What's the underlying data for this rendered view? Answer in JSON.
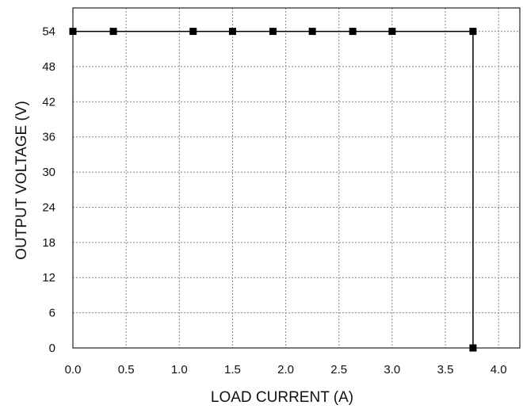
{
  "chart_data": {
    "type": "line",
    "xlabel": "LOAD CURRENT  (A)",
    "ylabel": "OUTPUT VOLTAGE  (V)",
    "xlim": [
      0,
      4.2
    ],
    "ylim": [
      0,
      58
    ],
    "x_ticks": [
      0,
      0.5,
      1.0,
      1.5,
      2.0,
      2.5,
      3.0,
      3.5,
      4.0
    ],
    "x_tick_labels": [
      "0.0",
      "0.5",
      "1.0",
      "1.5",
      "2.0",
      "2.5",
      "3.0",
      "3.5",
      "4.0"
    ],
    "y_ticks": [
      0,
      6,
      12,
      18,
      24,
      30,
      36,
      42,
      48,
      54
    ],
    "y_tick_labels": [
      "0",
      "6",
      "12",
      "18",
      "24",
      "30",
      "36",
      "42",
      "48",
      "54"
    ],
    "grid": true,
    "marker": "square",
    "series": [
      {
        "x": [
          0.0,
          0.38,
          1.13,
          1.5,
          1.88,
          2.25,
          2.63,
          3.0,
          3.76,
          3.76
        ],
        "y": [
          54,
          54,
          54,
          54,
          54,
          54,
          54,
          54,
          54,
          0
        ]
      }
    ]
  }
}
